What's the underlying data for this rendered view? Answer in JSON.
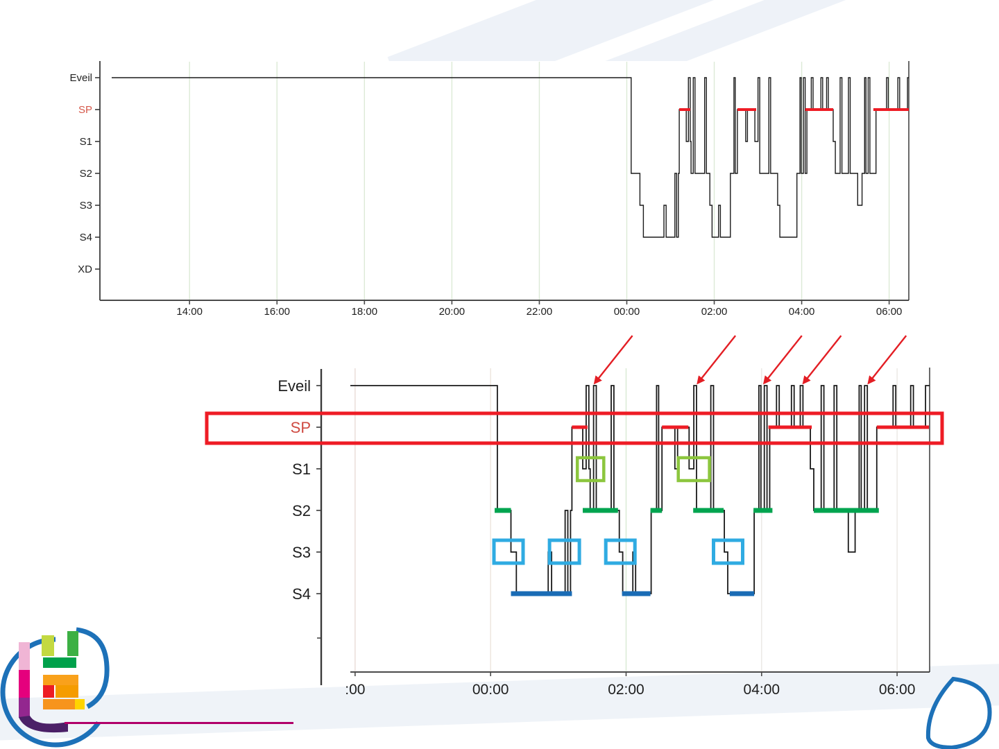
{
  "slide": {
    "background": "#ffffff",
    "swirl_color": "#eef2f8",
    "divider_color": "#b10069",
    "brand_blue": "#1d71b8",
    "logo_palette": [
      "#c3d941",
      "#3cb044",
      "#00a14b",
      "#f9a11b",
      "#ed1c24",
      "#ffd400",
      "#f0b5d5",
      "#e5007d",
      "#93278f",
      "#4b2067",
      "#1d71b8"
    ]
  },
  "hypnogram": {
    "stage_order": [
      "Eveil",
      "SP",
      "S1",
      "S2",
      "S3",
      "S4",
      "XD"
    ],
    "line_color": "#1a1a1a",
    "points": [
      [
        12.22,
        0
      ],
      [
        24.1,
        3
      ],
      [
        24.3,
        4
      ],
      [
        24.38,
        5
      ],
      [
        24.85,
        4
      ],
      [
        24.9,
        5
      ],
      [
        25.1,
        3
      ],
      [
        25.14,
        5
      ],
      [
        25.18,
        3
      ],
      [
        25.2,
        1
      ],
      [
        25.36,
        2
      ],
      [
        25.41,
        0
      ],
      [
        25.45,
        2
      ],
      [
        25.47,
        3
      ],
      [
        25.52,
        0
      ],
      [
        25.56,
        3
      ],
      [
        25.78,
        0
      ],
      [
        25.82,
        3
      ],
      [
        25.9,
        4
      ],
      [
        25.95,
        5
      ],
      [
        26.1,
        4
      ],
      [
        26.14,
        5
      ],
      [
        26.37,
        3
      ],
      [
        26.45,
        0
      ],
      [
        26.48,
        3
      ],
      [
        26.53,
        1
      ],
      [
        26.72,
        2
      ],
      [
        26.76,
        1
      ],
      [
        26.93,
        2
      ],
      [
        27.0,
        0
      ],
      [
        27.04,
        3
      ],
      [
        27.25,
        0
      ],
      [
        27.29,
        3
      ],
      [
        27.45,
        4
      ],
      [
        27.5,
        5
      ],
      [
        27.89,
        3
      ],
      [
        27.96,
        0
      ],
      [
        27.99,
        3
      ],
      [
        28.04,
        0
      ],
      [
        28.08,
        3
      ],
      [
        28.12,
        1
      ],
      [
        28.22,
        0
      ],
      [
        28.26,
        1
      ],
      [
        28.44,
        0
      ],
      [
        28.48,
        1
      ],
      [
        28.57,
        0
      ],
      [
        28.61,
        1
      ],
      [
        28.72,
        2
      ],
      [
        28.77,
        3
      ],
      [
        28.88,
        0
      ],
      [
        28.92,
        3
      ],
      [
        29.07,
        0
      ],
      [
        29.11,
        3
      ],
      [
        29.28,
        4
      ],
      [
        29.38,
        3
      ],
      [
        29.44,
        0
      ],
      [
        29.47,
        3
      ],
      [
        29.52,
        0
      ],
      [
        29.56,
        3
      ],
      [
        29.7,
        1
      ],
      [
        29.94,
        0
      ],
      [
        29.98,
        1
      ],
      [
        30.2,
        0
      ],
      [
        30.24,
        1
      ],
      [
        30.42,
        0
      ],
      [
        30.46,
        0
      ]
    ]
  },
  "chart_data": [
    {
      "type": "line",
      "subtype": "hypnogram_overview",
      "title": "",
      "grid": "on",
      "x_range_hours": [
        11.95,
        30.45
      ],
      "x_ticks": [
        {
          "t": 14,
          "label": "14:00"
        },
        {
          "t": 16,
          "label": "16:00"
        },
        {
          "t": 18,
          "label": "18:00"
        },
        {
          "t": 20,
          "label": "20:00"
        },
        {
          "t": 22,
          "label": "22:00"
        },
        {
          "t": 24,
          "label": "00:00"
        },
        {
          "t": 26,
          "label": "02:00"
        },
        {
          "t": 28,
          "label": "04:00"
        },
        {
          "t": 30,
          "label": "06:00"
        }
      ],
      "y_labels": [
        {
          "label": "Eveil",
          "color": "#222222"
        },
        {
          "label": "SP",
          "color": "#d5584a"
        },
        {
          "label": "S1",
          "color": "#222222"
        },
        {
          "label": "S2",
          "color": "#222222"
        },
        {
          "label": "S3",
          "color": "#222222"
        },
        {
          "label": "S4",
          "color": "#222222"
        },
        {
          "label": "XD",
          "color": "#222222"
        }
      ],
      "rem_color": "#ee1c25",
      "rem_segments": [
        [
          25.2,
          25.45
        ],
        [
          26.53,
          26.96
        ],
        [
          28.08,
          28.72
        ],
        [
          29.64,
          30.45
        ]
      ]
    },
    {
      "type": "line",
      "subtype": "hypnogram_zoom",
      "title": "",
      "grid": "on",
      "x_range_hours": [
        21.93,
        30.48
      ],
      "x_ticks": [
        {
          "t": 22,
          "label": ":00"
        },
        {
          "t": 24,
          "label": "00:00"
        },
        {
          "t": 26,
          "label": "02:00"
        },
        {
          "t": 28,
          "label": "04:00"
        },
        {
          "t": 30,
          "label": "06:00"
        }
      ],
      "y_labels": [
        {
          "label": "Eveil",
          "color": "#1e1e1e"
        },
        {
          "label": "SP",
          "color": "#cf4a41"
        },
        {
          "label": "S1",
          "color": "#1e1e1e"
        },
        {
          "label": "S2",
          "color": "#1e1e1e"
        },
        {
          "label": "S3",
          "color": "#1e1e1e"
        },
        {
          "label": "S4",
          "color": "#1e1e1e"
        }
      ],
      "overlays": {
        "sp": {
          "stage": "SP",
          "color": "#ee1c25",
          "segments": [
            [
              25.2,
              25.43
            ],
            [
              26.53,
              26.92
            ],
            [
              28.1,
              28.74
            ],
            [
              29.7,
              30.47
            ]
          ]
        },
        "s2": {
          "stage": "S2",
          "color": "#00a44f",
          "segments": [
            [
              24.06,
              24.3
            ],
            [
              25.36,
              25.88
            ],
            [
              26.36,
              26.53
            ],
            [
              26.99,
              27.44
            ],
            [
              27.88,
              28.16
            ],
            [
              28.77,
              29.73
            ]
          ]
        },
        "s4": {
          "stage": "S4",
          "color": "#1a6cb5",
          "segments": [
            [
              24.3,
              25.2
            ],
            [
              25.94,
              26.36
            ],
            [
              27.53,
              27.89
            ]
          ]
        }
      },
      "annotations": {
        "red_rect": {
          "color": "#ee1c25"
        },
        "green_boxes": {
          "stage": "S1",
          "color": "#8cc63e",
          "ranges": [
            [
              25.28,
              25.67
            ],
            [
              26.77,
              27.23
            ]
          ]
        },
        "blue_boxes": {
          "stage": "S3",
          "color": "#2fabe2",
          "ranges": [
            [
              24.05,
              24.48
            ],
            [
              24.87,
              25.31
            ],
            [
              25.7,
              26.13
            ],
            [
              27.29,
              27.72
            ]
          ]
        },
        "arrows": {
          "color": "#e31e24",
          "wake_spike_times": [
            25.5,
            27.02,
            28.0,
            28.58,
            29.54
          ]
        }
      }
    }
  ]
}
